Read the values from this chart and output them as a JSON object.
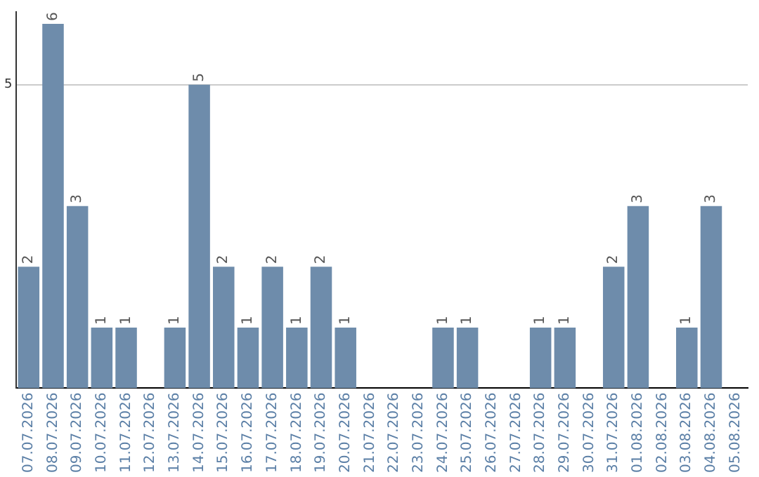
{
  "chart_data": {
    "type": "bar",
    "categories": [
      "07.07.2026",
      "08.07.2026",
      "09.07.2026",
      "10.07.2026",
      "11.07.2026",
      "12.07.2026",
      "13.07.2026",
      "14.07.2026",
      "15.07.2026",
      "16.07.2026",
      "17.07.2026",
      "18.07.2026",
      "19.07.2026",
      "20.07.2026",
      "21.07.2026",
      "22.07.2026",
      "23.07.2026",
      "24.07.2026",
      "25.07.2026",
      "26.07.2026",
      "27.07.2026",
      "28.07.2026",
      "29.07.2026",
      "30.07.2026",
      "31.07.2026",
      "01.08.2026",
      "02.08.2026",
      "03.08.2026",
      "04.08.2026",
      "05.08.2026"
    ],
    "values": [
      2,
      6,
      3,
      1,
      1,
      0,
      1,
      5,
      2,
      1,
      2,
      1,
      2,
      1,
      0,
      0,
      0,
      1,
      1,
      0,
      0,
      1,
      1,
      0,
      2,
      3,
      0,
      1,
      3,
      0
    ],
    "value_labels": [
      "2",
      "6",
      "3",
      "1",
      "1",
      null,
      "1",
      "5",
      "2",
      "1",
      "2",
      "1",
      "2",
      "1",
      null,
      null,
      null,
      "1",
      "1",
      null,
      null,
      "1",
      "1",
      null,
      "2",
      "3",
      null,
      "1",
      "3",
      null
    ],
    "color": "#6e8cab",
    "ylim": [
      0,
      6.2
    ],
    "yticks": [
      5
    ],
    "grid": "y",
    "legend": false
  }
}
